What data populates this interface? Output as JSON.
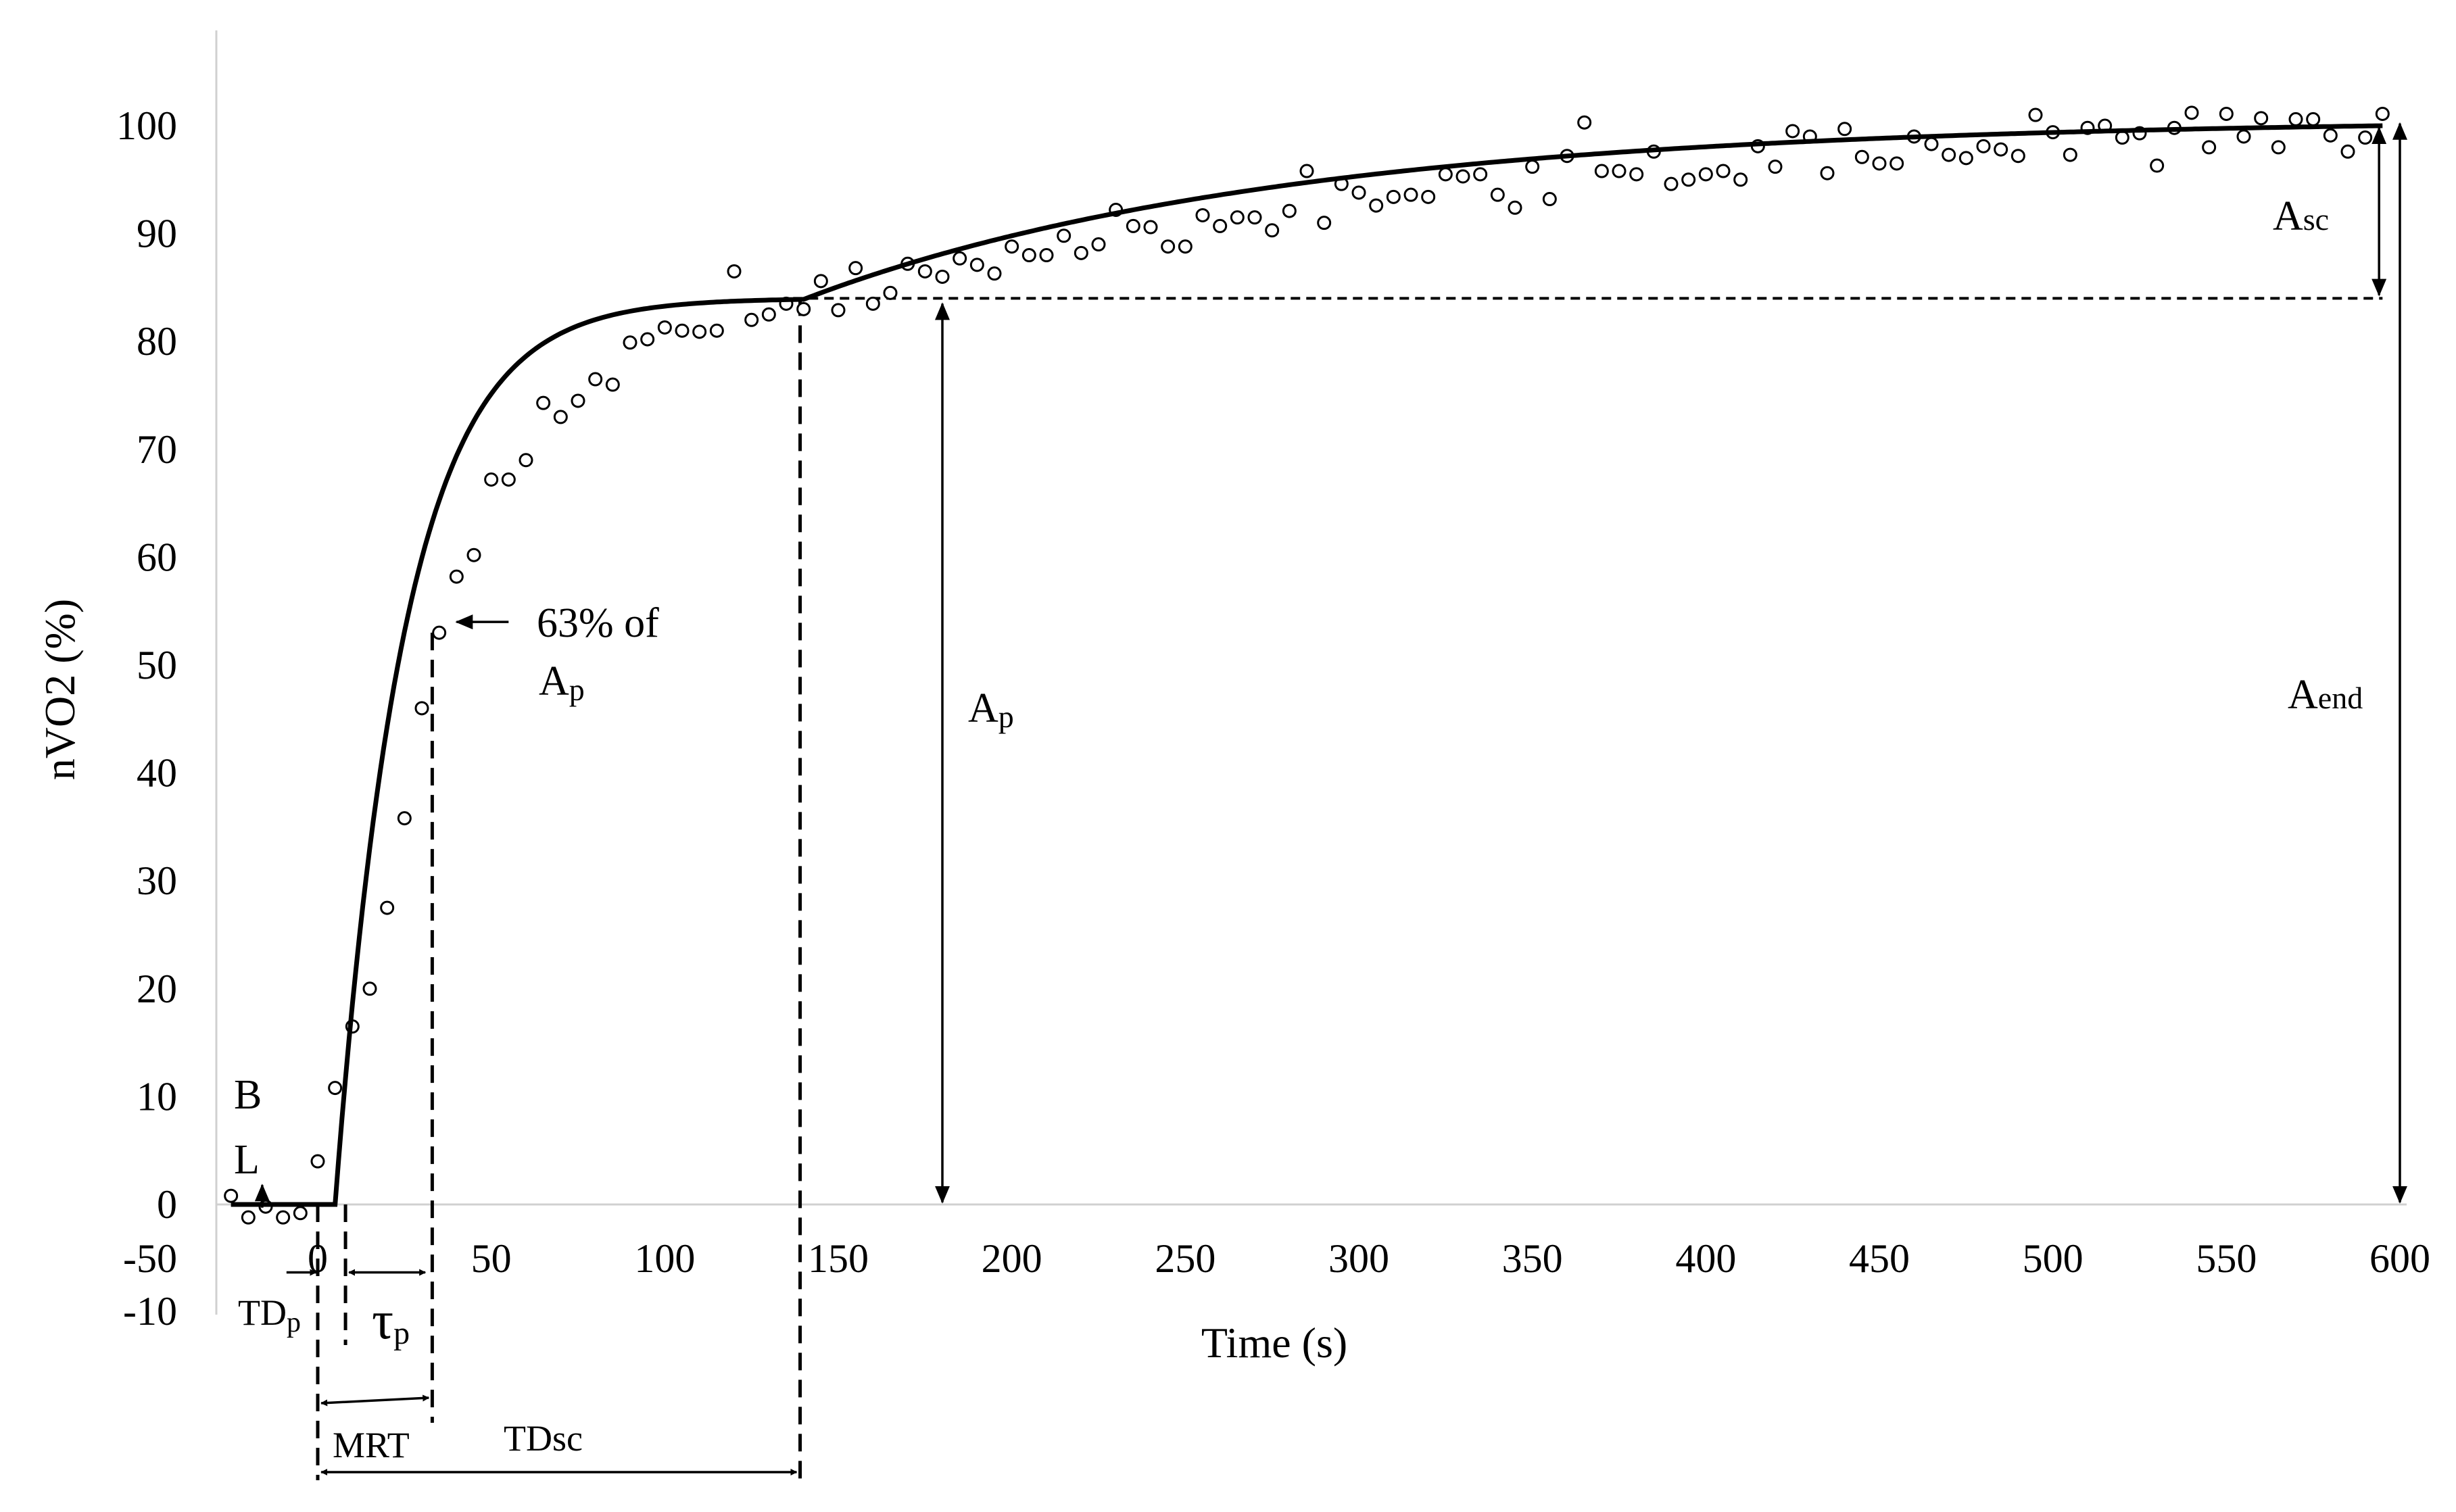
{
  "chart_data": {
    "type": "scatter",
    "title": "",
    "xlabel": "Time (s)",
    "ylabel": "nVO2 (%)",
    "xlim": [
      -50,
      600
    ],
    "ylim": [
      -10,
      100
    ],
    "x_ticks": [
      "-50",
      "0",
      "50",
      "100",
      "150",
      "200",
      "250",
      "300",
      "350",
      "400",
      "450",
      "500",
      "550",
      "600"
    ],
    "y_ticks": [
      "-10",
      "0",
      "10",
      "20",
      "30",
      "40",
      "50",
      "60",
      "70",
      "80",
      "90",
      "100"
    ],
    "fit_params": {
      "tdp": 5,
      "tau": 20,
      "ap": 84,
      "tdsc": 140,
      "asc": 16,
      "tau_sc": 140
    },
    "series": [
      {
        "kind": "points",
        "x": [
          -25,
          -20,
          -15,
          -10,
          -5,
          0,
          5,
          10,
          15,
          20,
          25,
          30,
          35,
          40,
          45,
          50,
          55,
          60,
          65,
          70,
          75,
          80,
          85,
          90,
          95,
          100,
          105,
          110,
          115,
          120,
          125,
          130,
          135,
          140,
          145,
          150,
          155,
          160,
          165,
          170,
          175,
          180,
          185,
          190,
          195,
          200,
          205,
          210,
          215,
          220,
          225,
          230,
          235,
          240,
          245,
          250,
          255,
          260,
          265,
          270,
          275,
          280,
          285,
          290,
          295,
          300,
          305,
          310,
          315,
          320,
          325,
          330,
          335,
          340,
          345,
          350,
          355,
          360,
          365,
          370,
          375,
          380,
          385,
          390,
          395,
          400,
          405,
          410,
          415,
          420,
          425,
          430,
          435,
          440,
          445,
          450,
          455,
          460,
          465,
          470,
          475,
          480,
          485,
          490,
          495,
          500,
          505,
          510,
          515,
          520,
          525,
          530,
          535,
          540,
          545,
          550,
          555,
          560,
          565,
          570,
          575,
          580,
          585,
          590,
          595
        ],
        "y": [
          0.8,
          -1.2,
          -0.2,
          -1.2,
          -0.8,
          4,
          10.8,
          16.5,
          20,
          27.5,
          35.8,
          46,
          53,
          58.2,
          60.2,
          67.2,
          67.2,
          69,
          74.3,
          73,
          74.5,
          76.5,
          76,
          79.9,
          80.2,
          81.3,
          81,
          80.9,
          81,
          86.5,
          82,
          82.5,
          83.5,
          83,
          85.6,
          82.9,
          86.8,
          83.5,
          84.5,
          87.2,
          86.5,
          86,
          87.7,
          87.1,
          86.3,
          88.8,
          88,
          88,
          89.8,
          88.2,
          89,
          92.2,
          90.7,
          90.6,
          88.8,
          88.8,
          91.7,
          90.7,
          91.5,
          91.5,
          90.3,
          92.1,
          95.8,
          91,
          94.6,
          93.8,
          92.6,
          93.4,
          93.6,
          93.4,
          95.5,
          95.3,
          95.5,
          93.6,
          92.4,
          96.2,
          93.2,
          97.2,
          100.3,
          95.8,
          95.8,
          95.5,
          97.6,
          94.6,
          95,
          95.5,
          95.8,
          95,
          98.1,
          96.2,
          99.5,
          99,
          95.6,
          99.7,
          97.1,
          96.5,
          96.5,
          99,
          98.3,
          97.3,
          97,
          98.1,
          97.8,
          97.2,
          101,
          99.4,
          97.3,
          99.8,
          100,
          98.9,
          99.3,
          96.3,
          99.8,
          101.2,
          98,
          101.1,
          99,
          100.7,
          98,
          100.6,
          100.6,
          99.1,
          97.6,
          98.9,
          101.1
        ]
      }
    ],
    "annotations": {
      "bl_1": "B",
      "bl_2": "L",
      "tdp": "TD",
      "tdp_sub": "p",
      "tau": "τ",
      "tau_sub": "p",
      "mrt": "MRT",
      "tdsc": "TDsc",
      "pct_1": "63% of",
      "pct_2": "A",
      "pct_2_sub": "p",
      "ap": "A",
      "ap_sub": "p",
      "asc": "A",
      "asc_sub": "sc",
      "aend": "A",
      "aend_sub": "end"
    }
  }
}
